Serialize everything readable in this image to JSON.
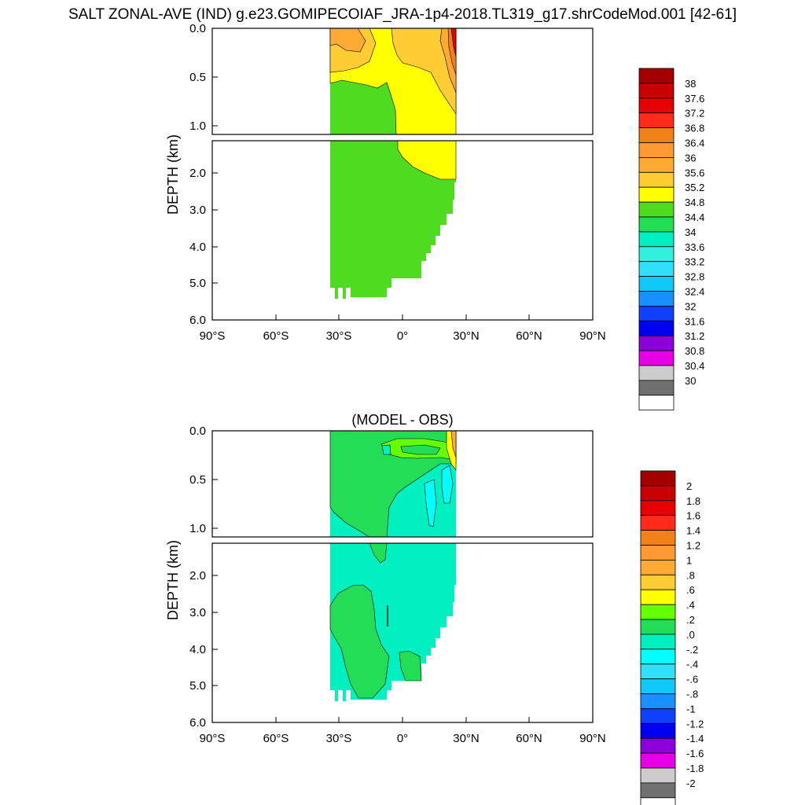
{
  "figure": {
    "title": "SALT ZONAL-AVE (IND) g.e23.GOMIPECOIAF_JRA-1p4-2018.TL319_g17.shrCodeMod.001 [42-61]"
  },
  "chart_data": [
    {
      "type": "heatmap",
      "title": "",
      "xlabel": "",
      "ylabel": "DEPTH (km)",
      "x_ticks": [
        "90°S",
        "60°S",
        "30°S",
        "0°",
        "30°N",
        "60°N",
        "90°N"
      ],
      "xlim": [
        -90,
        90
      ],
      "ylim": [
        6.0,
        0.0
      ],
      "y_ticks_upper": [
        "0.0",
        "0.5",
        "1.0"
      ],
      "y_ticks_lower": [
        "2.0",
        "3.0",
        "4.0",
        "5.0",
        "6.0"
      ],
      "upper_panel_depth_range_km": [
        0.0,
        1.1
      ],
      "lower_panel_depth_range_km": [
        1.1,
        6.0
      ],
      "colorbar_labels": [
        "38",
        "37.6",
        "37.2",
        "36.8",
        "36.4",
        "36",
        "35.6",
        "35.2",
        "34.8",
        "34.4",
        "34",
        "33.6",
        "33.2",
        "32.8",
        "32.4",
        "32",
        "31.6",
        "31.2",
        "30.8",
        "30.4",
        "30"
      ],
      "colorbar_colors": [
        "#a50000",
        "#c80000",
        "#e60000",
        "#ff2a1a",
        "#f08018",
        "#ff9933",
        "#ffaa33",
        "#ffcc33",
        "#ffff00",
        "#4fdb1f",
        "#22dd55",
        "#00f0c0",
        "#30f0e0",
        "#30e0f8",
        "#10c8f8",
        "#1890ff",
        "#1040ff",
        "#0000f0",
        "#8c00dc",
        "#e600e6",
        "#cccccc",
        "#707070",
        "#ffffff"
      ],
      "regions": [
        {
          "name": "green 34.4-34.8",
          "color": "#4fdb1f",
          "ocean_extent": "35°S to 25°N"
        },
        {
          "name": "yellow 34.8-35.2",
          "color": "#ffff00"
        },
        {
          "name": "light orange 35.2-35.6",
          "color": "#ffcc33"
        },
        {
          "name": "orange 35.6-36",
          "color": "#ffaa33"
        },
        {
          "name": "dark orange",
          "color": "#ff9933"
        },
        {
          "name": "red maximum",
          "color": "#e60000"
        }
      ]
    },
    {
      "type": "heatmap",
      "title": "(MODEL - OBS)",
      "xlabel": "",
      "ylabel": "DEPTH (km)",
      "x_ticks": [
        "90°S",
        "60°S",
        "30°S",
        "0°",
        "30°N",
        "60°N",
        "90°N"
      ],
      "xlim": [
        -90,
        90
      ],
      "ylim": [
        6.0,
        0.0
      ],
      "y_ticks_upper": [
        "0.0",
        "0.5",
        "1.0"
      ],
      "y_ticks_lower": [
        "2.0",
        "3.0",
        "4.0",
        "5.0",
        "6.0"
      ],
      "colorbar_labels": [
        "2",
        "1.8",
        "1.6",
        "1.4",
        "1.2",
        "1",
        ".8",
        ".6",
        ".4",
        ".2",
        ".0",
        "-.2",
        "-.4",
        "-.6",
        "-.8",
        "-1",
        "-1.2",
        "-1.4",
        "-1.6",
        "-1.8",
        "-2"
      ],
      "colorbar_colors": [
        "#a50000",
        "#c80000",
        "#e60000",
        "#ff2a1a",
        "#f08018",
        "#ff9933",
        "#ffaa33",
        "#ffcc33",
        "#ffff00",
        "#66ff00",
        "#22dd55",
        "#00f0c0",
        "#00ffff",
        "#30e0f8",
        "#10c8f8",
        "#1890ff",
        "#1040ff",
        "#0000f0",
        "#8c00dc",
        "#e600e6",
        "#cccccc",
        "#707070",
        "#ffffff"
      ],
      "regions": [
        {
          "name": "cyan 0 to -0.2",
          "color": "#00f0c0"
        },
        {
          "name": "green 0 to 0.2",
          "color": "#22dd55"
        },
        {
          "name": "light cyan -0.2 to -0.4",
          "color": "#00ffff"
        },
        {
          "name": "lime 0.2-0.4",
          "color": "#66ff00"
        },
        {
          "name": "yellow",
          "color": "#ffff00"
        },
        {
          "name": "orange",
          "color": "#ffaa33"
        }
      ]
    }
  ]
}
